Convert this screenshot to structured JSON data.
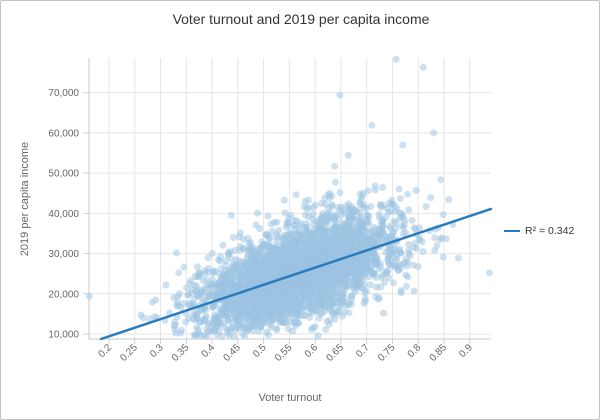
{
  "frame": {
    "background": "#ffffff",
    "border_color": "#c3c3c3"
  },
  "chart_data": {
    "type": "scatter",
    "title": "Voter turnout and 2019 per capita income",
    "xlabel": "Voter turnout",
    "ylabel": "2019 per capita income",
    "legend": {
      "label": "R² = 0.342",
      "position": "right",
      "swatch_color": "#2b7cbd"
    },
    "xlim": [
      0.1612,
      0.9412
    ],
    "ylim": [
      8757,
      78630
    ],
    "grid": true,
    "x_ticks": [
      0.2,
      0.25,
      0.3,
      0.35,
      0.4,
      0.45,
      0.5,
      0.55,
      0.6,
      0.65,
      0.7,
      0.75,
      0.8,
      0.85,
      0.9
    ],
    "x_tick_labels": [
      "0.2",
      "0.25",
      "0.3",
      "0.35",
      "0.4",
      "0.45",
      "0.5",
      "0.55",
      "0.6",
      "0.65",
      "0.7",
      "0.75",
      "0.8",
      "0.85",
      "0.9"
    ],
    "y_ticks": [
      10000,
      20000,
      30000,
      40000,
      50000,
      60000,
      70000
    ],
    "y_tick_labels": [
      "10,000",
      "20,000",
      "30,000",
      "40,000",
      "50,000",
      "60,000",
      "70,000"
    ],
    "trend_line": {
      "x1": 0.1845,
      "y1": 8757,
      "x2": 0.9412,
      "y2": 41085,
      "r_squared": 0.342,
      "color": "#2b7cbd",
      "width": 2.5
    },
    "scatter_cloud": {
      "comment": "dense cloud of county-level points; generated deterministically from these fitted distribution parameters",
      "count": 3400,
      "seed": 7,
      "x_mean": 0.57,
      "x_std": 0.095,
      "intercept": 904,
      "slope": 42722,
      "noise_std": 5600,
      "upper_tail_prob": 0.055,
      "upper_tail_scale": 9000,
      "lower_tail_prob": 0.03,
      "lower_tail_scale": 3200,
      "y_min": 9300,
      "y_max": 78400,
      "marker": {
        "radius": 3.5,
        "color": "rgba(155,195,225,0.5)"
      }
    },
    "highlight_points": [
      [
        0.757,
        78300
      ],
      [
        0.81,
        76300
      ],
      [
        0.648,
        69400
      ],
      [
        0.83,
        60000
      ],
      [
        0.77,
        57000
      ],
      [
        0.162,
        19400
      ],
      [
        0.938,
        25200
      ]
    ],
    "colors": {
      "grid": "#e6e6e6",
      "axis_line": "#c6cbd1",
      "tick": "#ccd1d6",
      "title": "#333333",
      "axis_title": "#666666",
      "tick_label": "#666666",
      "legend_text": "#333333"
    }
  }
}
